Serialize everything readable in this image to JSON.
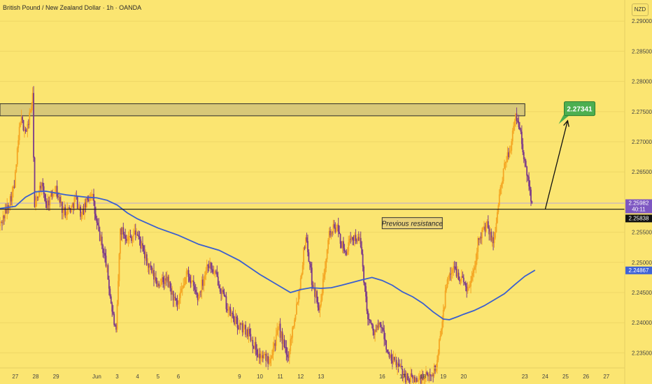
{
  "header": {
    "title": "British Pound / New Zealand Dollar · 1h · OANDA",
    "currency": "NZD"
  },
  "colors": {
    "background": "#fbe571",
    "candle_up": "#f5a623",
    "candle_down": "#7b3a8a",
    "ma_line": "#3a5fcf",
    "zone_fill": "#d8c878",
    "target_green": "#4caf50",
    "price_tag": "#7e57c2",
    "ma_tag": "#3f63d6"
  },
  "chart_data": {
    "type": "candlestick",
    "y_axis_ticks": [
      "2.29000",
      "2.28500",
      "2.28000",
      "2.27500",
      "2.27000",
      "2.26500",
      "2.25500",
      "2.25000",
      "2.24500",
      "2.24000",
      "2.23500"
    ],
    "y_tick_values": [
      2.29,
      2.285,
      2.28,
      2.275,
      2.27,
      2.265,
      2.255,
      2.25,
      2.245,
      2.24,
      2.235
    ],
    "ylim": [
      2.2325,
      2.2935
    ],
    "x_axis_ticks": [
      "27",
      "28",
      "29",
      "Jun",
      "3",
      "4",
      "5",
      "6",
      "9",
      "10",
      "11",
      "12",
      "13",
      "16",
      "17",
      "18",
      "19",
      "20",
      "23",
      "24",
      "25",
      "26",
      "27"
    ],
    "x_tick_positions": [
      0,
      1,
      2,
      4,
      5,
      6,
      7,
      8,
      11,
      12,
      13,
      14,
      15,
      18,
      19,
      20,
      21,
      22,
      25,
      26,
      27,
      28,
      29
    ],
    "xlim": [
      -0.75,
      29.9
    ],
    "resistance_zone": [
      2.2743,
      2.2763
    ],
    "zone_x_end": 25.0,
    "support_line": 2.25881,
    "annotation": "Previous resistance",
    "annotation_pos": [
      18.0,
      2.2565
    ],
    "target_label": "2.27341",
    "target_value": 2.27341,
    "arrow": {
      "from": [
        26.0,
        2.2588
      ],
      "to": [
        27.1,
        2.2735
      ]
    },
    "price_tags": [
      {
        "label": "2.25982",
        "value": 2.25982,
        "extra": "40:11",
        "kind": "current"
      },
      {
        "label": "2.25838",
        "value": 2.25838,
        "kind": "line"
      },
      {
        "label": "2.24867",
        "value": 2.24867,
        "kind": "ma"
      }
    ],
    "path_points": [
      [
        -0.8,
        2.2555
      ],
      [
        -0.4,
        2.2585
      ],
      [
        0.0,
        2.2625
      ],
      [
        0.3,
        2.2738
      ],
      [
        0.6,
        2.2715
      ],
      [
        0.9,
        2.2772
      ],
      [
        1.0,
        2.259
      ],
      [
        1.3,
        2.263
      ],
      [
        1.6,
        2.2595
      ],
      [
        2.0,
        2.2625
      ],
      [
        2.4,
        2.2585
      ],
      [
        2.8,
        2.259
      ],
      [
        3.0,
        2.2608
      ],
      [
        3.3,
        2.2578
      ],
      [
        3.8,
        2.262
      ],
      [
        4.0,
        2.257
      ],
      [
        4.5,
        2.25
      ],
      [
        4.8,
        2.242
      ],
      [
        5.0,
        2.238
      ],
      [
        5.2,
        2.2555
      ],
      [
        5.6,
        2.254
      ],
      [
        6.0,
        2.255
      ],
      [
        6.5,
        2.25
      ],
      [
        7.0,
        2.2465
      ],
      [
        7.5,
        2.247
      ],
      [
        8.0,
        2.2425
      ],
      [
        8.5,
        2.2485
      ],
      [
        9.0,
        2.244
      ],
      [
        9.5,
        2.25
      ],
      [
        10.0,
        2.247
      ],
      [
        10.5,
        2.242
      ],
      [
        11.0,
        2.2395
      ],
      [
        11.5,
        2.2385
      ],
      [
        12.0,
        2.2345
      ],
      [
        12.5,
        2.234
      ],
      [
        13.0,
        2.239
      ],
      [
        13.4,
        2.234
      ],
      [
        14.0,
        2.246
      ],
      [
        14.3,
        2.2545
      ],
      [
        14.6,
        2.247
      ],
      [
        15.0,
        2.242
      ],
      [
        15.4,
        2.2545
      ],
      [
        15.8,
        2.256
      ],
      [
        16.2,
        2.2515
      ],
      [
        16.7,
        2.2545
      ],
      [
        17.0,
        2.253
      ],
      [
        17.3,
        2.242
      ],
      [
        17.6,
        2.2385
      ],
      [
        18.0,
        2.2395
      ],
      [
        18.4,
        2.234
      ],
      [
        18.8,
        2.233
      ],
      [
        19.2,
        2.231
      ],
      [
        19.7,
        2.2305
      ],
      [
        20.3,
        2.231
      ],
      [
        20.7,
        2.2325
      ],
      [
        21.0,
        2.241
      ],
      [
        21.3,
        2.248
      ],
      [
        21.6,
        2.249
      ],
      [
        22.0,
        2.247
      ],
      [
        22.3,
        2.2455
      ],
      [
        22.6,
        2.25
      ],
      [
        22.8,
        2.2545
      ],
      [
        23.2,
        2.256
      ],
      [
        23.5,
        2.253
      ],
      [
        23.8,
        2.261
      ],
      [
        24.1,
        2.2665
      ],
      [
        24.4,
        2.27
      ],
      [
        24.6,
        2.2743
      ],
      [
        24.8,
        2.2725
      ],
      [
        25.0,
        2.267
      ],
      [
        25.2,
        2.264
      ],
      [
        25.4,
        2.2598
      ]
    ],
    "ma_points": [
      [
        -0.8,
        2.2589
      ],
      [
        0.0,
        2.2593
      ],
      [
        0.5,
        2.2608
      ],
      [
        1.0,
        2.2617
      ],
      [
        1.5,
        2.2618
      ],
      [
        2.0,
        2.2615
      ],
      [
        2.5,
        2.2612
      ],
      [
        3.0,
        2.261
      ],
      [
        3.5,
        2.2608
      ],
      [
        4.0,
        2.2607
      ],
      [
        4.5,
        2.2603
      ],
      [
        5.0,
        2.2595
      ],
      [
        5.5,
        2.2582
      ],
      [
        6.0,
        2.2572
      ],
      [
        7.0,
        2.2557
      ],
      [
        8.0,
        2.2545
      ],
      [
        9.0,
        2.253
      ],
      [
        10.0,
        2.252
      ],
      [
        11.0,
        2.2503
      ],
      [
        12.0,
        2.248
      ],
      [
        13.0,
        2.246
      ],
      [
        13.5,
        2.245
      ],
      [
        14.0,
        2.2455
      ],
      [
        14.5,
        2.2458
      ],
      [
        15.0,
        2.2457
      ],
      [
        15.5,
        2.2458
      ],
      [
        16.0,
        2.2462
      ],
      [
        17.0,
        2.2471
      ],
      [
        17.5,
        2.2475
      ],
      [
        18.0,
        2.247
      ],
      [
        18.5,
        2.2462
      ],
      [
        19.0,
        2.2451
      ],
      [
        19.5,
        2.2443
      ],
      [
        20.0,
        2.2432
      ],
      [
        20.5,
        2.2418
      ],
      [
        21.0,
        2.2406
      ],
      [
        21.3,
        2.2405
      ],
      [
        21.7,
        2.241
      ],
      [
        22.0,
        2.2414
      ],
      [
        22.5,
        2.242
      ],
      [
        23.0,
        2.2428
      ],
      [
        23.5,
        2.2438
      ],
      [
        24.0,
        2.2448
      ],
      [
        24.5,
        2.2463
      ],
      [
        25.0,
        2.2477
      ],
      [
        25.5,
        2.2487
      ]
    ]
  }
}
